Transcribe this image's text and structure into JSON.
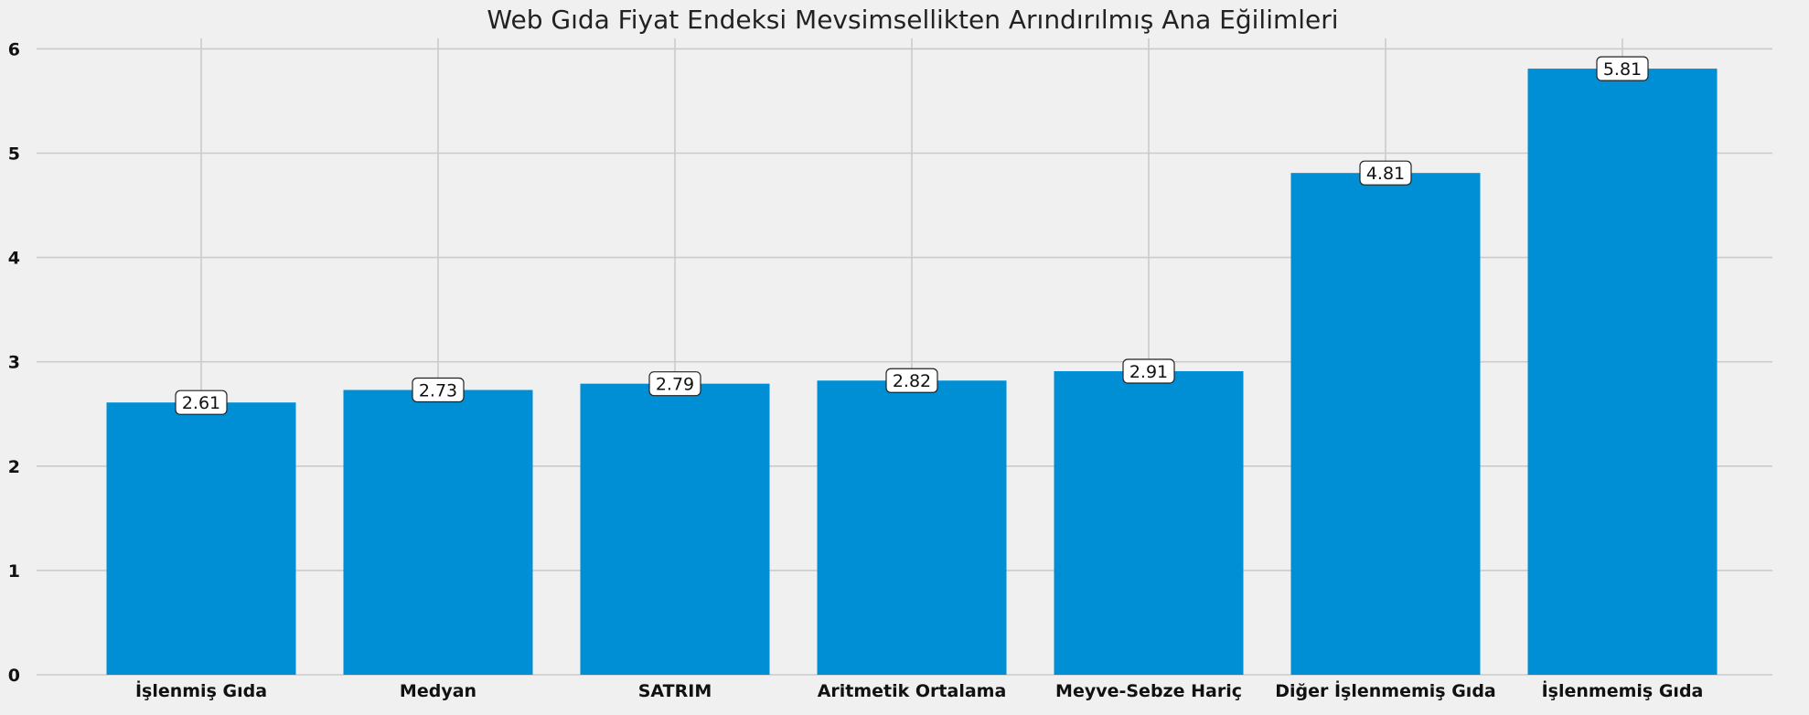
{
  "chart_data": {
    "type": "bar",
    "title": "Web Gıda Fiyat Endeksi Mevsimsellikten Arındırılmış Ana Eğilimleri",
    "xlabel": "",
    "ylabel": "",
    "categories": [
      "İşlenmiş Gıda",
      "Medyan",
      "SATRIM",
      "Aritmetik Ortalama",
      "Meyve-Sebze Hariç",
      "Diğer İşlenmemiş Gıda",
      "İşlenmemiş Gıda"
    ],
    "values": [
      2.61,
      2.73,
      2.79,
      2.82,
      2.91,
      4.81,
      5.81
    ],
    "value_labels": [
      "2.61",
      "2.73",
      "2.79",
      "2.82",
      "2.91",
      "4.81",
      "5.81"
    ],
    "ylim": [
      0,
      6.1
    ],
    "yticks": [
      0,
      1,
      2,
      3,
      4,
      5,
      6
    ],
    "ytick_labels": [
      "0",
      "1",
      "2",
      "3",
      "4",
      "5",
      "6"
    ],
    "grid": true,
    "legend": "none",
    "colors": {
      "bar": "#008fd5",
      "background": "#f0f0f0",
      "grid": "#cbcbcb"
    }
  }
}
